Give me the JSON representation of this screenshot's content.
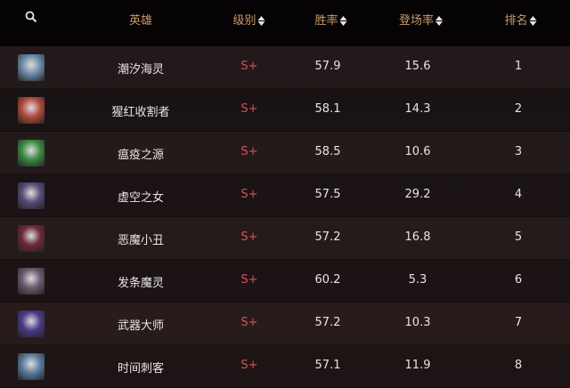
{
  "header": {
    "search_icon": "search-icon",
    "hero": "英雄",
    "tier": "级别",
    "win_rate": "胜率",
    "pick_rate": "登场率",
    "rank": "排名"
  },
  "colors": {
    "header_text": "#c89a6a",
    "tier_text": "#d8505e"
  },
  "rows": [
    {
      "name": "潮汐海灵",
      "tier": "S+",
      "win": "57.9",
      "pick": "15.6",
      "rank": "1",
      "avatar_color": "#6a8aa8"
    },
    {
      "name": "猩红收割者",
      "tier": "S+",
      "win": "58.1",
      "pick": "14.3",
      "rank": "2",
      "avatar_color": "#b04a3e"
    },
    {
      "name": "瘟疫之源",
      "tier": "S+",
      "win": "58.5",
      "pick": "10.6",
      "rank": "3",
      "avatar_color": "#3c8a44"
    },
    {
      "name": "虚空之女",
      "tier": "S+",
      "win": "57.5",
      "pick": "29.2",
      "rank": "4",
      "avatar_color": "#5a4a78"
    },
    {
      "name": "恶魔小丑",
      "tier": "S+",
      "win": "57.2",
      "pick": "16.8",
      "rank": "5",
      "avatar_color": "#6a2a3a"
    },
    {
      "name": "发条魔灵",
      "tier": "S+",
      "win": "60.2",
      "pick": "5.3",
      "rank": "6",
      "avatar_color": "#6a5a70"
    },
    {
      "name": "武器大师",
      "tier": "S+",
      "win": "57.2",
      "pick": "10.3",
      "rank": "7",
      "avatar_color": "#4a3a8a"
    },
    {
      "name": "时间刺客",
      "tier": "S+",
      "win": "57.1",
      "pick": "11.9",
      "rank": "8",
      "avatar_color": "#5a7a9a"
    }
  ]
}
